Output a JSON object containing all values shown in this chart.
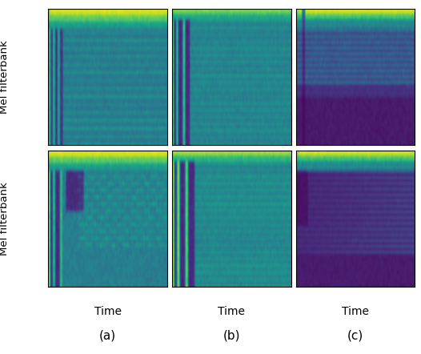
{
  "cmap": "viridis",
  "row_ylabels": [
    "Mel filterbank",
    "Mel filterbank"
  ],
  "col_xlabels": [
    "Time",
    "Time",
    "Time"
  ],
  "col_captions": [
    "(a)",
    "(b)",
    "(c)"
  ],
  "figsize": [
    5.26,
    4.42
  ],
  "dpi": 100,
  "seed": 42,
  "n_freq": 120,
  "n_time": 200
}
